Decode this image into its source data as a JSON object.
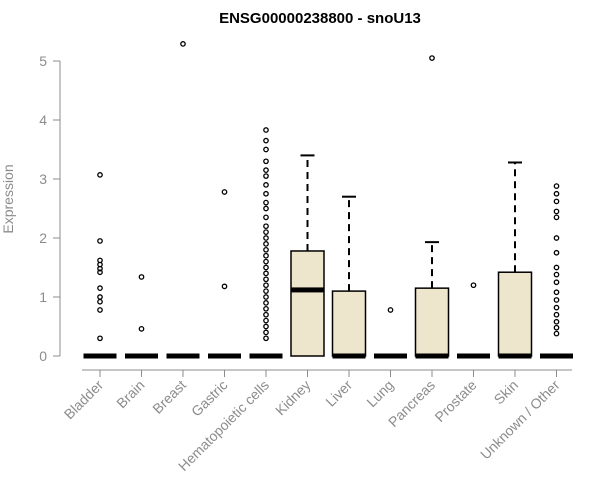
{
  "chart_data": {
    "type": "box",
    "title": "ENSG00000238800 - snoU13",
    "xlabel": "",
    "ylabel": "Expression",
    "ylim": [
      0,
      5.3
    ],
    "yticks": [
      0,
      1,
      2,
      3,
      4,
      5
    ],
    "grid": false,
    "legend": "none",
    "colors": {
      "box_fill": "#ede6cc",
      "stroke": "#000000",
      "axis": "#8c8c8c"
    },
    "categories": [
      "Bladder",
      "Brain",
      "Breast",
      "Gastric",
      "Hematopoietic cells",
      "Kidney",
      "Liver",
      "Lung",
      "Pancreas",
      "Prostate",
      "Skin",
      "Unknown / Other"
    ],
    "boxes": [
      {
        "q1": 0,
        "median": 0,
        "q3": 0,
        "whisker_low": 0,
        "whisker_high": 0,
        "outliers": [
          0.3,
          0.78,
          0.92,
          1.0,
          1.15,
          1.42,
          1.48,
          1.55,
          1.62,
          1.95,
          3.07
        ]
      },
      {
        "q1": 0,
        "median": 0,
        "q3": 0,
        "whisker_low": 0,
        "whisker_high": 0,
        "outliers": [
          0.46,
          1.34
        ]
      },
      {
        "q1": 0,
        "median": 0,
        "q3": 0,
        "whisker_low": 0,
        "whisker_high": 0,
        "outliers": [
          5.29
        ]
      },
      {
        "q1": 0,
        "median": 0,
        "q3": 0,
        "whisker_low": 0,
        "whisker_high": 0,
        "outliers": [
          1.18,
          2.78
        ]
      },
      {
        "q1": 0,
        "median": 0,
        "q3": 0,
        "whisker_low": 0,
        "whisker_high": 0,
        "outliers": [
          0.3,
          0.4,
          0.5,
          0.6,
          0.7,
          0.8,
          0.9,
          1.0,
          1.1,
          1.2,
          1.3,
          1.4,
          1.5,
          1.6,
          1.7,
          1.8,
          1.9,
          2.0,
          2.1,
          2.2,
          2.35,
          2.5,
          2.6,
          2.75,
          2.9,
          3.05,
          3.15,
          3.3,
          3.5,
          3.65,
          3.83
        ]
      },
      {
        "q1": 0,
        "median": 1.12,
        "q3": 1.78,
        "whisker_low": 0,
        "whisker_high": 3.4,
        "outliers": []
      },
      {
        "q1": 0,
        "median": 0,
        "q3": 1.1,
        "whisker_low": 0,
        "whisker_high": 2.7,
        "outliers": []
      },
      {
        "q1": 0,
        "median": 0,
        "q3": 0,
        "whisker_low": 0,
        "whisker_high": 0,
        "outliers": [
          0.78
        ]
      },
      {
        "q1": 0,
        "median": 0,
        "q3": 1.15,
        "whisker_low": 0,
        "whisker_high": 1.93,
        "outliers": [
          5.05
        ]
      },
      {
        "q1": 0,
        "median": 0,
        "q3": 0,
        "whisker_low": 0,
        "whisker_high": 0,
        "outliers": [
          1.2
        ]
      },
      {
        "q1": 0,
        "median": 0,
        "q3": 1.42,
        "whisker_low": 0,
        "whisker_high": 3.28,
        "outliers": []
      },
      {
        "q1": 0,
        "median": 0,
        "q3": 0,
        "whisker_low": 0,
        "whisker_high": 0,
        "outliers": [
          0.38,
          0.48,
          0.58,
          0.7,
          0.82,
          0.95,
          1.08,
          1.25,
          1.38,
          1.5,
          1.75,
          2.0,
          2.35,
          2.45,
          2.62,
          2.75,
          2.88
        ]
      }
    ]
  }
}
